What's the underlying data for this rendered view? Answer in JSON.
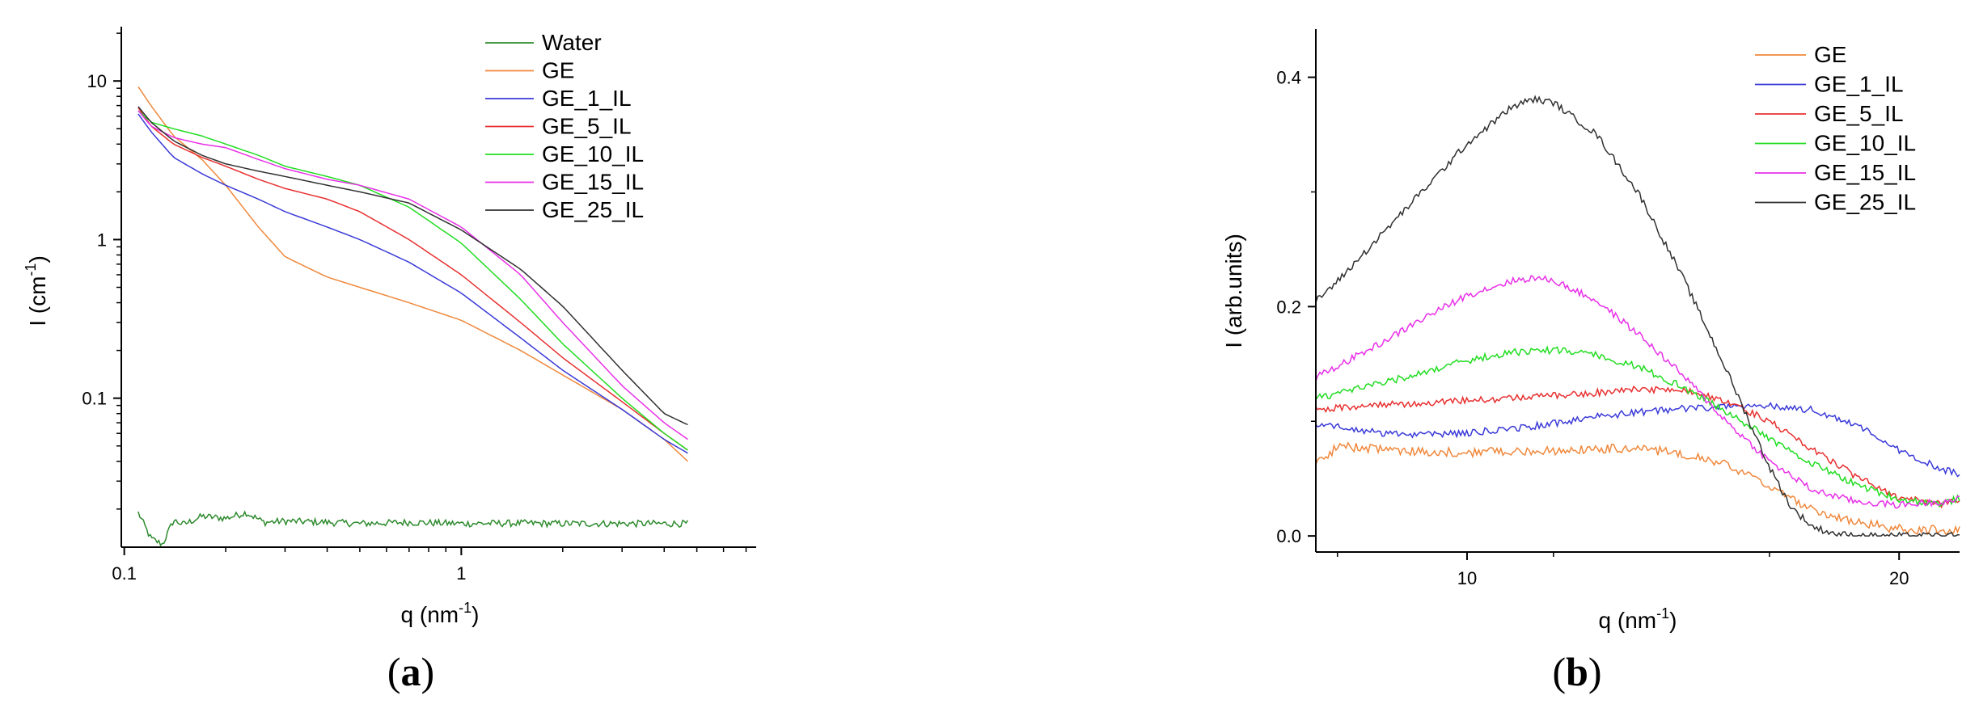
{
  "panels": {
    "a": {
      "label_open": "(",
      "label_letter": "a",
      "label_close": ")"
    },
    "b": {
      "label_open": "(",
      "label_letter": "b",
      "label_close": ")"
    }
  },
  "chart_data": [
    {
      "type": "line",
      "panel": "a",
      "xlabel": "q (nm",
      "xlabel_sup": "-1",
      "xlabel_end": ")",
      "ylabel": "I (cm",
      "ylabel_sup": "-1",
      "ylabel_end": ")",
      "xscale": "log",
      "yscale": "log",
      "xlim": [
        0.098,
        7.5
      ],
      "ylim": [
        0.0115,
        22
      ],
      "xticks": [
        {
          "value": 0.1,
          "label": "0.1"
        },
        {
          "value": 1,
          "label": "1"
        }
      ],
      "yticks": [
        {
          "value": 0.1,
          "label": "0.1"
        },
        {
          "value": 1,
          "label": "1"
        },
        {
          "value": 10,
          "label": "10"
        }
      ],
      "legend_position": "top-right",
      "series": [
        {
          "name": "Water",
          "color": "#2e8b2e",
          "noise": 0.05,
          "x": [
            0.11,
            0.12,
            0.13,
            0.14,
            0.15,
            0.17,
            0.2,
            0.23,
            0.26,
            0.3,
            0.4,
            0.5,
            0.7,
            1,
            1.5,
            2,
            3,
            4,
            4.7
          ],
          "y": [
            0.019,
            0.013,
            0.012,
            0.017,
            0.016,
            0.018,
            0.0175,
            0.019,
            0.0165,
            0.0168,
            0.0165,
            0.0162,
            0.0165,
            0.0162,
            0.0163,
            0.0162,
            0.0162,
            0.0162,
            0.0162
          ]
        },
        {
          "name": "GE",
          "color": "#f0883c",
          "noise": 0,
          "x": [
            0.11,
            0.12,
            0.14,
            0.17,
            0.2,
            0.25,
            0.3,
            0.4,
            0.5,
            0.7,
            1,
            1.5,
            2,
            3,
            4,
            4.7
          ],
          "y": [
            9.2,
            7.0,
            4.5,
            3.2,
            2.2,
            1.2,
            0.78,
            0.58,
            0.5,
            0.4,
            0.31,
            0.2,
            0.14,
            0.085,
            0.055,
            0.04
          ]
        },
        {
          "name": "GE_1_IL",
          "color": "#3a3ad8",
          "noise": 0,
          "x": [
            0.11,
            0.12,
            0.14,
            0.17,
            0.2,
            0.25,
            0.3,
            0.4,
            0.5,
            0.7,
            1,
            1.5,
            2,
            3,
            4,
            4.7
          ],
          "y": [
            6.2,
            4.8,
            3.3,
            2.6,
            2.2,
            1.8,
            1.5,
            1.2,
            1.0,
            0.72,
            0.46,
            0.24,
            0.15,
            0.085,
            0.055,
            0.045
          ]
        },
        {
          "name": "GE_5_IL",
          "color": "#e83030",
          "noise": 0,
          "x": [
            0.11,
            0.12,
            0.14,
            0.17,
            0.2,
            0.25,
            0.3,
            0.4,
            0.5,
            0.7,
            1,
            1.5,
            2,
            3,
            4,
            4.7
          ],
          "y": [
            6.8,
            5.2,
            4.0,
            3.3,
            2.9,
            2.4,
            2.1,
            1.8,
            1.5,
            1.0,
            0.6,
            0.3,
            0.18,
            0.095,
            0.06,
            0.047
          ]
        },
        {
          "name": "GE_10_IL",
          "color": "#22dd22",
          "noise": 0,
          "x": [
            0.11,
            0.12,
            0.14,
            0.17,
            0.2,
            0.25,
            0.3,
            0.4,
            0.5,
            0.7,
            1,
            1.5,
            2,
            3,
            4,
            4.7
          ],
          "y": [
            6.5,
            5.5,
            5.0,
            4.5,
            4.0,
            3.4,
            2.9,
            2.5,
            2.2,
            1.6,
            0.95,
            0.42,
            0.22,
            0.1,
            0.06,
            0.047
          ]
        },
        {
          "name": "GE_15_IL",
          "color": "#e830e8",
          "noise": 0,
          "x": [
            0.11,
            0.12,
            0.14,
            0.17,
            0.2,
            0.25,
            0.3,
            0.4,
            0.5,
            0.7,
            1,
            1.5,
            2,
            3,
            4,
            4.7
          ],
          "y": [
            6.5,
            5.2,
            4.4,
            4.0,
            3.8,
            3.2,
            2.8,
            2.4,
            2.2,
            1.8,
            1.2,
            0.6,
            0.3,
            0.12,
            0.07,
            0.055
          ]
        },
        {
          "name": "GE_25_IL",
          "color": "#303030",
          "noise": 0,
          "x": [
            0.11,
            0.12,
            0.14,
            0.17,
            0.2,
            0.25,
            0.3,
            0.4,
            0.5,
            0.7,
            1,
            1.5,
            2,
            3,
            4,
            4.7
          ],
          "y": [
            6.9,
            5.5,
            4.2,
            3.4,
            3.0,
            2.7,
            2.5,
            2.2,
            2.0,
            1.7,
            1.15,
            0.65,
            0.38,
            0.15,
            0.08,
            0.068
          ]
        }
      ]
    },
    {
      "type": "line",
      "panel": "b",
      "xlabel": "q (nm",
      "xlabel_sup": "-1",
      "xlabel_end": ")",
      "ylabel": "I (arb.units)",
      "xscale": "linear",
      "yscale": "linear",
      "xlim": [
        6.5,
        21.4
      ],
      "ylim": [
        -0.014,
        0.442
      ],
      "xticks": [
        {
          "value": 10,
          "label": "10"
        },
        {
          "value": 20,
          "label": "20"
        }
      ],
      "yticks": [
        {
          "value": 0.0,
          "label": "0.0"
        },
        {
          "value": 0.2,
          "label": "0.2"
        },
        {
          "value": 0.4,
          "label": "0.4"
        }
      ],
      "legend_position": "top-right",
      "series": [
        {
          "name": "GE",
          "color": "#f0883c",
          "noise": 0.004,
          "x": [
            6.5,
            7,
            8,
            9,
            10,
            11,
            12,
            13,
            14,
            15,
            16,
            17,
            18,
            19,
            20,
            21,
            21.4
          ],
          "y": [
            0.062,
            0.078,
            0.076,
            0.073,
            0.073,
            0.074,
            0.074,
            0.076,
            0.076,
            0.072,
            0.062,
            0.043,
            0.022,
            0.012,
            0.006,
            0.005,
            0.007
          ]
        },
        {
          "name": "GE_1_IL",
          "color": "#3a3ad8",
          "noise": 0.003,
          "x": [
            6.5,
            7,
            8,
            9,
            10,
            11,
            12,
            13,
            14,
            15,
            16,
            17,
            18,
            19,
            20,
            21,
            21.4
          ],
          "y": [
            0.098,
            0.095,
            0.09,
            0.088,
            0.09,
            0.093,
            0.098,
            0.104,
            0.108,
            0.111,
            0.113,
            0.114,
            0.11,
            0.097,
            0.075,
            0.058,
            0.054
          ]
        },
        {
          "name": "GE_5_IL",
          "color": "#e83030",
          "noise": 0.003,
          "x": [
            6.5,
            7,
            8,
            9,
            10,
            11,
            12,
            13,
            14,
            15,
            16,
            17,
            18,
            19,
            20,
            21,
            21.4
          ],
          "y": [
            0.11,
            0.112,
            0.114,
            0.116,
            0.118,
            0.12,
            0.122,
            0.125,
            0.128,
            0.127,
            0.118,
            0.1,
            0.075,
            0.052,
            0.033,
            0.028,
            0.031
          ]
        },
        {
          "name": "GE_10_IL",
          "color": "#22dd22",
          "noise": 0.003,
          "x": [
            6.5,
            7,
            8,
            9,
            10,
            11,
            12,
            13,
            14,
            15,
            16,
            17,
            18,
            19,
            20,
            21,
            21.4
          ],
          "y": [
            0.12,
            0.124,
            0.133,
            0.143,
            0.153,
            0.16,
            0.162,
            0.158,
            0.147,
            0.13,
            0.108,
            0.085,
            0.063,
            0.045,
            0.032,
            0.028,
            0.033
          ]
        },
        {
          "name": "GE_15_IL",
          "color": "#e830e8",
          "noise": 0.003,
          "x": [
            6.5,
            7,
            8,
            9,
            10,
            11,
            11.5,
            12,
            13,
            14,
            15,
            16,
            17,
            18,
            19,
            20,
            21,
            21.4
          ],
          "y": [
            0.138,
            0.148,
            0.168,
            0.19,
            0.21,
            0.222,
            0.225,
            0.223,
            0.205,
            0.175,
            0.14,
            0.1,
            0.065,
            0.04,
            0.03,
            0.027,
            0.03,
            0.032
          ]
        },
        {
          "name": "GE_25_IL",
          "color": "#303030",
          "noise": 0.003,
          "x": [
            6.5,
            7,
            8,
            9,
            10,
            11,
            11.5,
            12,
            13,
            14,
            15,
            16,
            17,
            17.5,
            18,
            18.5,
            19,
            20,
            21,
            21.4
          ],
          "y": [
            0.205,
            0.222,
            0.262,
            0.302,
            0.342,
            0.373,
            0.381,
            0.378,
            0.35,
            0.297,
            0.225,
            0.145,
            0.06,
            0.025,
            0.008,
            0.002,
            0.0,
            0.0,
            0.0,
            0.0
          ]
        }
      ]
    }
  ]
}
